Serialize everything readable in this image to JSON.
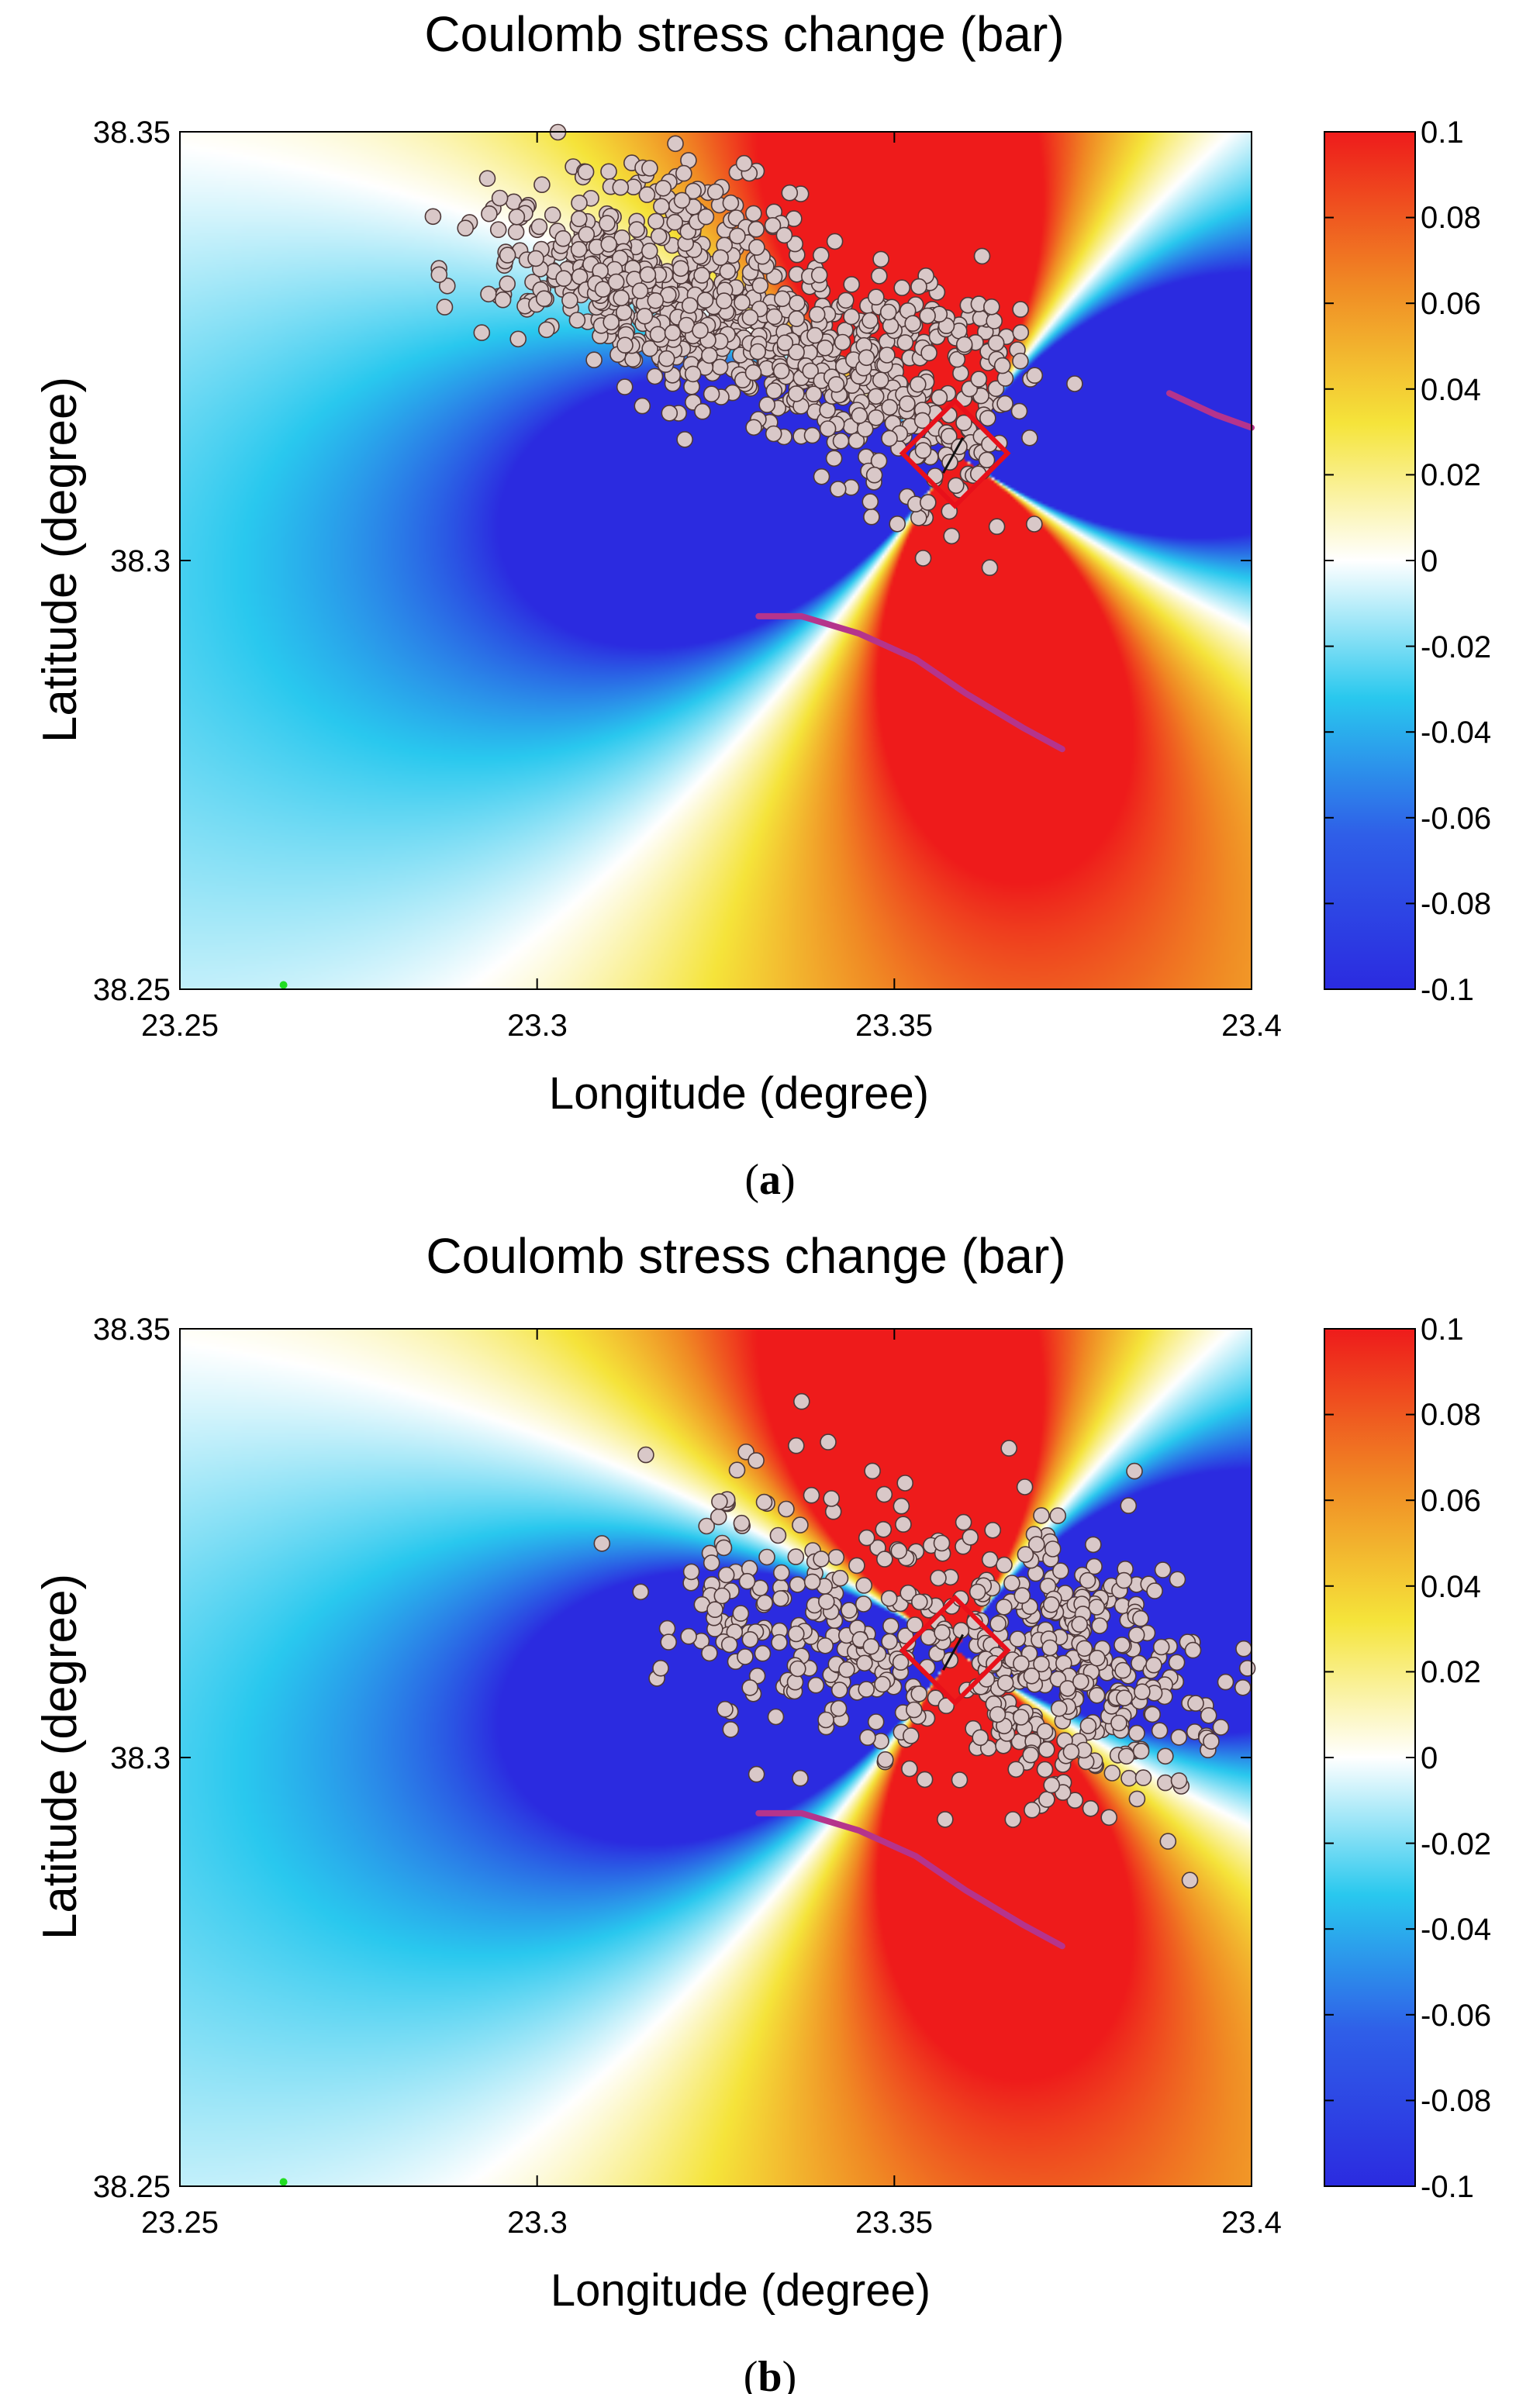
{
  "figure": {
    "panels": [
      {
        "panel_label": "a",
        "title": "Coulomb stress change (bar)",
        "xlabel": "Longitude (degree)",
        "ylabel": "Latitude  (degree)",
        "xlim": [
          23.25,
          23.4
        ],
        "ylim": [
          38.25,
          38.35
        ],
        "x_ticks": [
          {
            "value": 23.25,
            "label": "23.25"
          },
          {
            "value": 23.3,
            "label": "23.3"
          },
          {
            "value": 23.35,
            "label": "23.35"
          },
          {
            "value": 23.4,
            "label": "23.4"
          }
        ],
        "y_ticks": [
          {
            "value": 38.25,
            "label": "38.25"
          },
          {
            "value": 38.3,
            "label": "38.3"
          },
          {
            "value": 38.35,
            "label": "38.35"
          }
        ],
        "colorbar_ticks": [
          {
            "value": 0.1,
            "label": "0.1"
          },
          {
            "value": 0.08,
            "label": "0.08"
          },
          {
            "value": 0.06,
            "label": "0.06"
          },
          {
            "value": 0.04,
            "label": "0.04"
          },
          {
            "value": 0.02,
            "label": "0.02"
          },
          {
            "value": 0,
            "label": "0"
          },
          {
            "value": -0.02,
            "label": "-0.02"
          },
          {
            "value": -0.04,
            "label": "-0.04"
          },
          {
            "value": -0.06,
            "label": "-0.06"
          },
          {
            "value": -0.08,
            "label": "-0.08"
          },
          {
            "value": -0.1,
            "label": "-0.1"
          }
        ]
      },
      {
        "panel_label": "b",
        "title": "Coulomb stress change (bar)",
        "xlabel": "Longitude (degree)",
        "ylabel": "Latitude  (degree)",
        "xlim": [
          23.25,
          23.4
        ],
        "ylim": [
          38.25,
          38.35
        ],
        "x_ticks": [
          {
            "value": 23.25,
            "label": "23.25"
          },
          {
            "value": 23.3,
            "label": "23.3"
          },
          {
            "value": 23.35,
            "label": "23.35"
          },
          {
            "value": 23.4,
            "label": "23.4"
          }
        ],
        "y_ticks": [
          {
            "value": 38.25,
            "label": "38.25"
          },
          {
            "value": 38.3,
            "label": "38.3"
          },
          {
            "value": 38.35,
            "label": "38.35"
          }
        ],
        "colorbar_ticks": [
          {
            "value": 0.1,
            "label": "0.1"
          },
          {
            "value": 0.08,
            "label": "0.08"
          },
          {
            "value": 0.06,
            "label": "0.06"
          },
          {
            "value": 0.04,
            "label": "0.04"
          },
          {
            "value": 0.02,
            "label": "0.02"
          },
          {
            "value": 0,
            "label": "0"
          },
          {
            "value": -0.02,
            "label": "-0.02"
          },
          {
            "value": -0.04,
            "label": "-0.04"
          },
          {
            "value": -0.06,
            "label": "-0.06"
          },
          {
            "value": -0.08,
            "label": "-0.08"
          },
          {
            "value": -0.1,
            "label": "-0.1"
          }
        ]
      }
    ]
  },
  "chart_data": [
    {
      "type": "heatmap",
      "title": "Coulomb stress change (bar)",
      "xlabel": "Longitude (degree)",
      "ylabel": "Latitude  (degree)",
      "xlim": [
        23.25,
        23.4
      ],
      "ylim": [
        38.25,
        38.35
      ],
      "colorbar_range": [
        -0.1,
        0.1
      ],
      "colormap": [
        "#2b2be0",
        "#29c8ee",
        "#ffffff",
        "#f5e43a",
        "#f08a24",
        "#ee1b1b"
      ],
      "source_fault": {
        "center": [
          23.3585,
          38.3125
        ],
        "box_half_size_deg": 0.0052,
        "box_rotation_deg": 45,
        "color": "#e8101a"
      },
      "fault_traces": [
        {
          "points": [
            [
              23.331,
              38.2935
            ],
            [
              23.337,
              38.2935
            ],
            [
              23.345,
              38.2915
            ],
            [
              23.353,
              38.2885
            ],
            [
              23.36,
              38.2845
            ],
            [
              23.368,
              38.2805
            ],
            [
              23.3735,
              38.278
            ]
          ]
        },
        {
          "points": [
            [
              23.3885,
              38.3195
            ],
            [
              23.395,
              38.317
            ],
            [
              23.4,
              38.3155
            ]
          ]
        }
      ],
      "stations": [
        [
          23.2645,
          38.2505
        ]
      ],
      "earthquakes": {
        "marker_color": "#d9c8c8",
        "edge_color": "#4e3838",
        "clusters": [
          {
            "center": [
              23.33,
              38.3265
            ],
            "spread": [
              0.014,
              0.0048
            ],
            "count": 520,
            "seed": 11
          },
          {
            "center": [
              23.312,
              38.3325
            ],
            "spread": [
              0.01,
              0.0045
            ],
            "count": 200,
            "seed": 12
          },
          {
            "center": [
              23.352,
              38.3155
            ],
            "spread": [
              0.0075,
              0.0058
            ],
            "count": 130,
            "seed": 13
          },
          {
            "center": [
              23.3245,
              38.3405
            ],
            "spread": [
              0.009,
              0.0032
            ],
            "count": 90,
            "seed": 14
          },
          {
            "center": [
              23.36,
              38.327
            ],
            "spread": [
              0.0065,
              0.0035
            ],
            "count": 60,
            "seed": 15
          }
        ]
      }
    },
    {
      "type": "heatmap",
      "title": "Coulomb stress change (bar)",
      "xlabel": "Longitude (degree)",
      "ylabel": "Latitude  (degree)",
      "xlim": [
        23.25,
        23.4
      ],
      "ylim": [
        38.25,
        38.35
      ],
      "colorbar_range": [
        -0.1,
        0.1
      ],
      "colormap": [
        "#2b2be0",
        "#29c8ee",
        "#ffffff",
        "#f5e43a",
        "#f08a24",
        "#ee1b1b"
      ],
      "source_fault": {
        "center": [
          23.3585,
          38.3125
        ],
        "box_half_size_deg": 0.0052,
        "box_rotation_deg": 45,
        "color": "#e8101a"
      },
      "fault_traces": [
        {
          "points": [
            [
              23.331,
              38.2935
            ],
            [
              23.337,
              38.2935
            ],
            [
              23.345,
              38.2915
            ],
            [
              23.353,
              38.2885
            ],
            [
              23.36,
              38.2845
            ],
            [
              23.368,
              38.2805
            ],
            [
              23.3735,
              38.278
            ]
          ]
        }
      ],
      "stations": [
        [
          23.2645,
          38.2505
        ]
      ],
      "earthquakes": {
        "marker_color": "#d9c8c8",
        "edge_color": "#4e3838",
        "clusters": [
          {
            "center": [
              23.375,
              38.3115
            ],
            "spread": [
              0.0115,
              0.0072
            ],
            "count": 320,
            "seed": 21
          },
          {
            "center": [
              23.3435,
              38.3115
            ],
            "spread": [
              0.0085,
              0.0058
            ],
            "count": 110,
            "seed": 22
          },
          {
            "center": [
              23.3375,
              38.3205
            ],
            "spread": [
              0.0105,
              0.0068
            ],
            "count": 90,
            "seed": 23
          },
          {
            "center": [
              23.3245,
              38.315
            ],
            "spread": [
              0.0048,
              0.0048
            ],
            "count": 30,
            "seed": 24
          },
          {
            "center": [
              23.372,
              38.3005
            ],
            "spread": [
              0.0055,
              0.0045
            ],
            "count": 45,
            "seed": 25
          }
        ]
      }
    }
  ]
}
